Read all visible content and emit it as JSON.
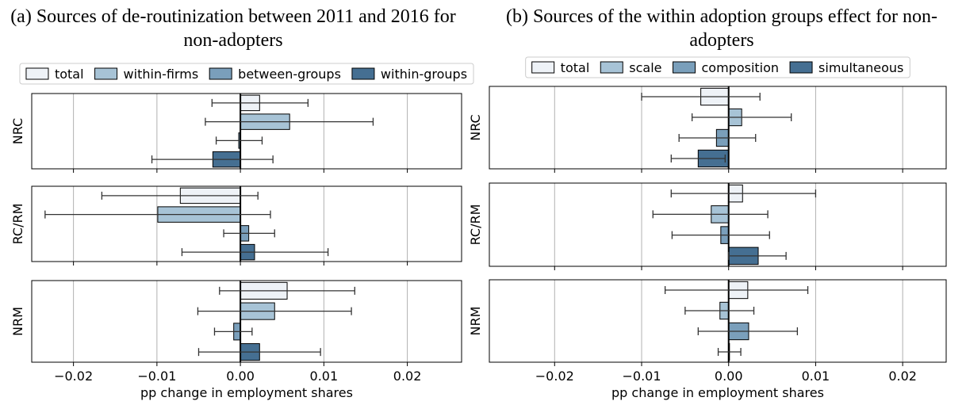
{
  "chart_data": [
    {
      "type": "bar",
      "orientation": "horizontal",
      "title": "(a) Sources of de-routinization between 2011 and 2016 for non-adopters",
      "xlabel": "pp change in employment shares",
      "categories": [
        "NRC",
        "RC/RM",
        "NRM"
      ],
      "xlim": [
        -0.025,
        0.0265
      ],
      "xticks": [
        {
          "value": -0.02,
          "label": "−0.02"
        },
        {
          "value": -0.01,
          "label": "−0.01"
        },
        {
          "value": 0,
          "label": "0.00"
        },
        0.01,
        0.02
      ],
      "grid": true,
      "legend": "top",
      "series": [
        {
          "name": "total",
          "color": "#eef2f7",
          "values": [
            0.0023,
            -0.0072,
            0.0056
          ],
          "lower": [
            -0.0034,
            -0.0166,
            -0.0025
          ],
          "upper": [
            0.0081,
            0.0021,
            0.0137
          ]
        },
        {
          "name": "within-firms",
          "color": "#a7c3d6",
          "values": [
            0.0059,
            -0.0099,
            0.0041
          ],
          "lower": [
            -0.0042,
            -0.0234,
            -0.0051
          ],
          "upper": [
            0.0159,
            0.0036,
            0.0133
          ]
        },
        {
          "name": "between-groups",
          "color": "#7a9fbb",
          "values": [
            -0.0002,
            0.001,
            -0.0008
          ],
          "lower": [
            -0.0029,
            -0.002,
            -0.0031
          ],
          "upper": [
            0.0026,
            0.0041,
            0.0014
          ]
        },
        {
          "name": "within-groups",
          "color": "#456f92",
          "values": [
            -0.0033,
            0.0017,
            0.0023
          ],
          "lower": [
            -0.0106,
            -0.007,
            -0.005
          ],
          "upper": [
            0.0039,
            0.0105,
            0.0096
          ]
        }
      ]
    },
    {
      "type": "bar",
      "orientation": "horizontal",
      "title": "(b) Sources of the within adoption groups effect for non-adopters",
      "xlabel": "pp change in employment shares",
      "categories": [
        "NRC",
        "RC/RM",
        "NRM"
      ],
      "xlim": [
        -0.0275,
        0.025
      ],
      "xticks": [
        {
          "value": -0.02,
          "label": "−0.02"
        },
        {
          "value": -0.01,
          "label": "−0.01"
        },
        {
          "value": 0,
          "label": "0.00"
        },
        0.01,
        0.02
      ],
      "grid": true,
      "legend": "top",
      "series": [
        {
          "name": "total",
          "color": "#eef2f7",
          "values": [
            -0.0032,
            0.0016,
            0.0022
          ],
          "lower": [
            -0.01,
            -0.0066,
            -0.0073
          ],
          "upper": [
            0.0036,
            0.01,
            0.0091
          ]
        },
        {
          "name": "scale",
          "color": "#a7c3d6",
          "values": [
            0.0015,
            -0.002,
            -0.001
          ],
          "lower": [
            -0.0042,
            -0.0087,
            -0.005
          ],
          "upper": [
            0.0072,
            0.0045,
            0.0029
          ]
        },
        {
          "name": "composition",
          "color": "#7a9fbb",
          "values": [
            -0.0014,
            -0.0009,
            0.0023
          ],
          "lower": [
            -0.0057,
            -0.0065,
            -0.0035
          ],
          "upper": [
            0.0031,
            0.0047,
            0.0079
          ]
        },
        {
          "name": "simultaneous",
          "color": "#456f92",
          "values": [
            -0.0035,
            0.0034,
            0.0001
          ],
          "lower": [
            -0.0066,
            0.0,
            -0.0012
          ],
          "upper": [
            -0.0004,
            0.0066,
            0.0014
          ]
        }
      ]
    }
  ]
}
